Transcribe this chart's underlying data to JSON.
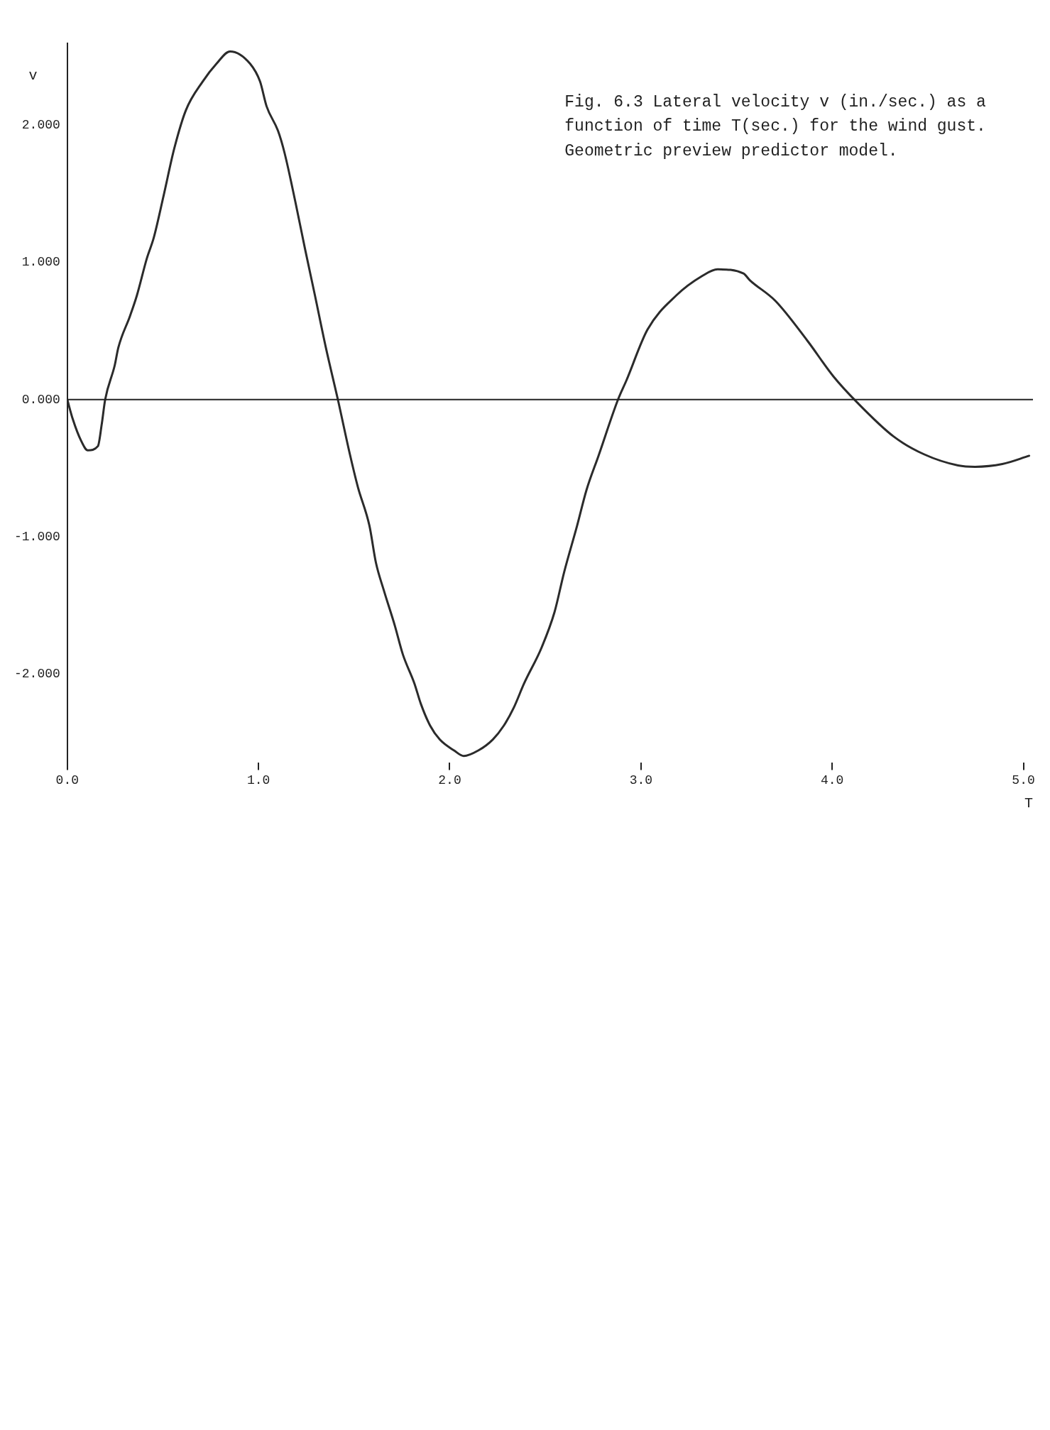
{
  "chart_data": {
    "type": "line",
    "title": "Fig. 6.3 Lateral velocity v (in./sec.) as a function of time T(sec.) for the wind gust. Geometric preview predictor model.",
    "xlabel": "T",
    "ylabel": "v",
    "x": [
      0,
      0.028,
      0.072,
      0.107,
      0.16,
      0.18,
      0.198,
      0.248,
      0.267,
      0.328,
      0.364,
      0.416,
      0.452,
      0.504,
      0.559,
      0.62,
      0.708,
      0.78,
      0.851,
      0.956,
      1.008,
      1.042,
      1.102,
      1.136,
      1.193,
      1.243,
      1.295,
      1.352,
      1.415,
      1.478,
      1.52,
      1.58,
      1.614,
      1.655,
      1.713,
      1.755,
      1.815,
      1.849,
      1.898,
      1.948,
      2.023,
      2.073,
      2.149,
      2.225,
      2.282,
      2.334,
      2.389,
      2.48,
      2.548,
      2.598,
      2.666,
      2.715,
      2.778,
      2.88,
      2.924,
      3.034,
      3.185,
      3.318,
      3.401,
      3.536,
      3.57,
      3.703,
      3.87,
      4.006,
      4.13,
      4.322,
      4.482,
      4.658,
      4.747,
      4.89,
      5.03
    ],
    "values": [
      0,
      -0.14,
      -0.3,
      -0.37,
      -0.34,
      -0.18,
      0,
      0.25,
      0.38,
      0.61,
      0.76,
      1.03,
      1.18,
      1.49,
      1.83,
      2.11,
      2.32,
      2.45,
      2.54,
      2.45,
      2.32,
      2.14,
      1.96,
      1.8,
      1.44,
      1.1,
      0.76,
      0.38,
      0,
      -0.4,
      -0.64,
      -0.92,
      -1.19,
      -1.39,
      -1.65,
      -1.86,
      -2.07,
      -2.22,
      -2.38,
      -2.48,
      -2.56,
      -2.6,
      -2.56,
      -2.48,
      -2.38,
      -2.25,
      -2.07,
      -1.81,
      -1.55,
      -1.26,
      -0.92,
      -0.66,
      -0.41,
      0,
      0.14,
      0.51,
      0.76,
      0.9,
      0.95,
      0.92,
      0.87,
      0.72,
      0.43,
      0.17,
      -0.02,
      -0.27,
      -0.4,
      -0.48,
      -0.49,
      -0.47,
      -0.41
    ],
    "color": "#2b2b2b",
    "xlim": [
      0,
      5.05
    ],
    "xticks": [
      {
        "value": 0,
        "label": "0.0"
      },
      {
        "value": 1,
        "label": "1.0"
      },
      {
        "value": 2,
        "label": "2.0"
      },
      {
        "value": 3,
        "label": "3.0"
      },
      {
        "value": 4,
        "label": "4.0"
      },
      {
        "value": 5,
        "label": "5.0"
      }
    ],
    "ylim": [
      -2.65,
      2.6
    ],
    "yticks": [
      {
        "value": 2,
        "label": "2.000"
      },
      {
        "value": 1,
        "label": "1.000"
      },
      {
        "value": 0,
        "label": "0.000"
      },
      {
        "value": -1,
        "label": "-1.000"
      },
      {
        "value": -2,
        "label": "-2.000"
      }
    ],
    "ref_lines": [
      {
        "axis": "y",
        "value": 0
      }
    ]
  }
}
